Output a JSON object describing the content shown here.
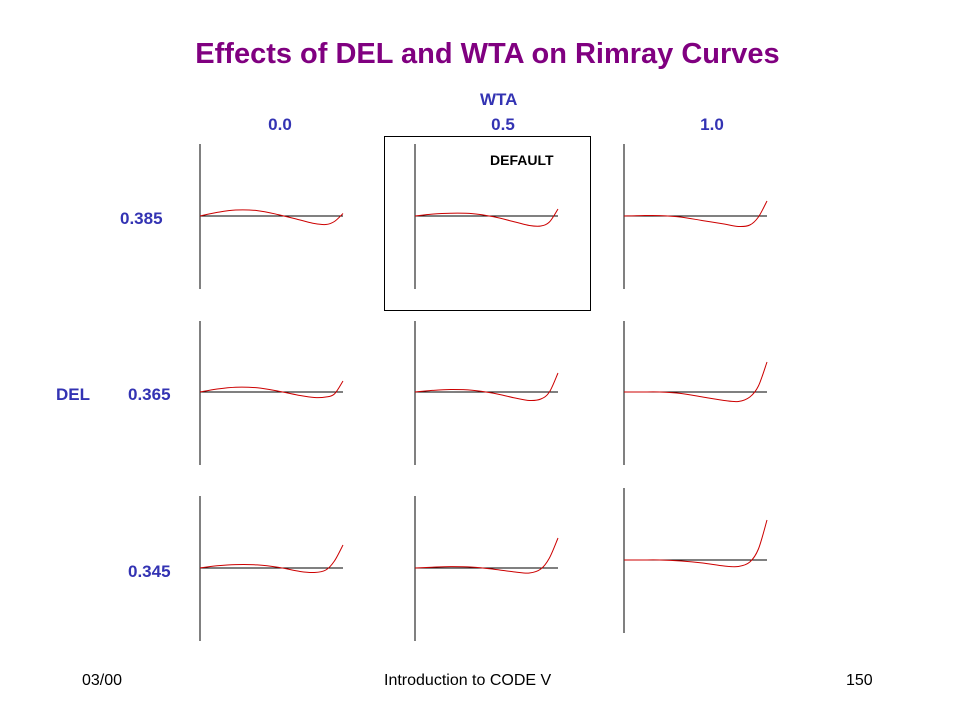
{
  "title": "Effects of DEL and WTA on Rimray Curves",
  "wta": {
    "label": "WTA",
    "values": [
      "0.0",
      "0.5",
      "1.0"
    ]
  },
  "del": {
    "label": "DEL",
    "values": [
      "0.385",
      "0.365",
      "0.345"
    ]
  },
  "default_label": "DEFAULT",
  "footer": {
    "left": "03/00",
    "center": "Introduction to CODE V",
    "right": "150"
  },
  "colors": {
    "title": "#800080",
    "labels": "#3333b3",
    "curve": "#cc0000",
    "axis": "#000000"
  },
  "curves": [
    [
      [
        0,
        0
      ],
      [
        0.12,
        3.6
      ],
      [
        0.25,
        6
      ],
      [
        0.4,
        5.4
      ],
      [
        0.55,
        1.3
      ],
      [
        0.7,
        -4
      ],
      [
        0.8,
        -7.5
      ],
      [
        0.88,
        -8.5
      ],
      [
        0.94,
        -5.5
      ],
      [
        1,
        2.5
      ]
    ],
    [
      [
        0,
        0
      ],
      [
        0.12,
        1.9
      ],
      [
        0.25,
        2.8
      ],
      [
        0.4,
        2.4
      ],
      [
        0.55,
        -0.8
      ],
      [
        0.7,
        -6
      ],
      [
        0.8,
        -9.5
      ],
      [
        0.88,
        -10
      ],
      [
        0.94,
        -6
      ],
      [
        1,
        7
      ]
    ],
    [
      [
        0,
        0
      ],
      [
        0.12,
        0.4
      ],
      [
        0.25,
        0.4
      ],
      [
        0.4,
        -1.1
      ],
      [
        0.55,
        -4.6
      ],
      [
        0.7,
        -8
      ],
      [
        0.8,
        -10.5
      ],
      [
        0.88,
        -9
      ],
      [
        0.94,
        -1
      ],
      [
        1,
        15
      ]
    ],
    [
      [
        0,
        0
      ],
      [
        0.12,
        3
      ],
      [
        0.25,
        4.8
      ],
      [
        0.4,
        4.2
      ],
      [
        0.55,
        0.8
      ],
      [
        0.7,
        -3.5
      ],
      [
        0.8,
        -5.5
      ],
      [
        0.88,
        -5
      ],
      [
        0.94,
        -2
      ],
      [
        1,
        11
      ]
    ],
    [
      [
        0,
        0
      ],
      [
        0.12,
        1.6
      ],
      [
        0.25,
        2.5
      ],
      [
        0.4,
        1.8
      ],
      [
        0.55,
        -1.3
      ],
      [
        0.7,
        -6
      ],
      [
        0.8,
        -8.5
      ],
      [
        0.88,
        -7
      ],
      [
        0.94,
        0
      ],
      [
        1,
        19
      ]
    ],
    [
      [
        0,
        0
      ],
      [
        0.12,
        0
      ],
      [
        0.25,
        0
      ],
      [
        0.4,
        -1.5
      ],
      [
        0.55,
        -5
      ],
      [
        0.7,
        -8.5
      ],
      [
        0.8,
        -9.5
      ],
      [
        0.88,
        -5
      ],
      [
        0.94,
        6
      ],
      [
        1,
        30
      ]
    ],
    [
      [
        0,
        0
      ],
      [
        0.12,
        2.2
      ],
      [
        0.25,
        3.4
      ],
      [
        0.4,
        3.1
      ],
      [
        0.55,
        0.6
      ],
      [
        0.7,
        -3.5
      ],
      [
        0.8,
        -4.5
      ],
      [
        0.88,
        -2
      ],
      [
        0.94,
        7
      ],
      [
        1,
        23
      ]
    ],
    [
      [
        0,
        0
      ],
      [
        0.12,
        0.8
      ],
      [
        0.25,
        1.4
      ],
      [
        0.4,
        0.9
      ],
      [
        0.55,
        -1.2
      ],
      [
        0.7,
        -4
      ],
      [
        0.8,
        -5
      ],
      [
        0.88,
        -1
      ],
      [
        0.94,
        10
      ],
      [
        1,
        30
      ]
    ],
    [
      [
        0,
        0
      ],
      [
        0.12,
        0
      ],
      [
        0.25,
        0
      ],
      [
        0.4,
        -1
      ],
      [
        0.55,
        -3
      ],
      [
        0.7,
        -6
      ],
      [
        0.8,
        -6.5
      ],
      [
        0.88,
        -2
      ],
      [
        0.94,
        11
      ],
      [
        1,
        40
      ]
    ]
  ]
}
